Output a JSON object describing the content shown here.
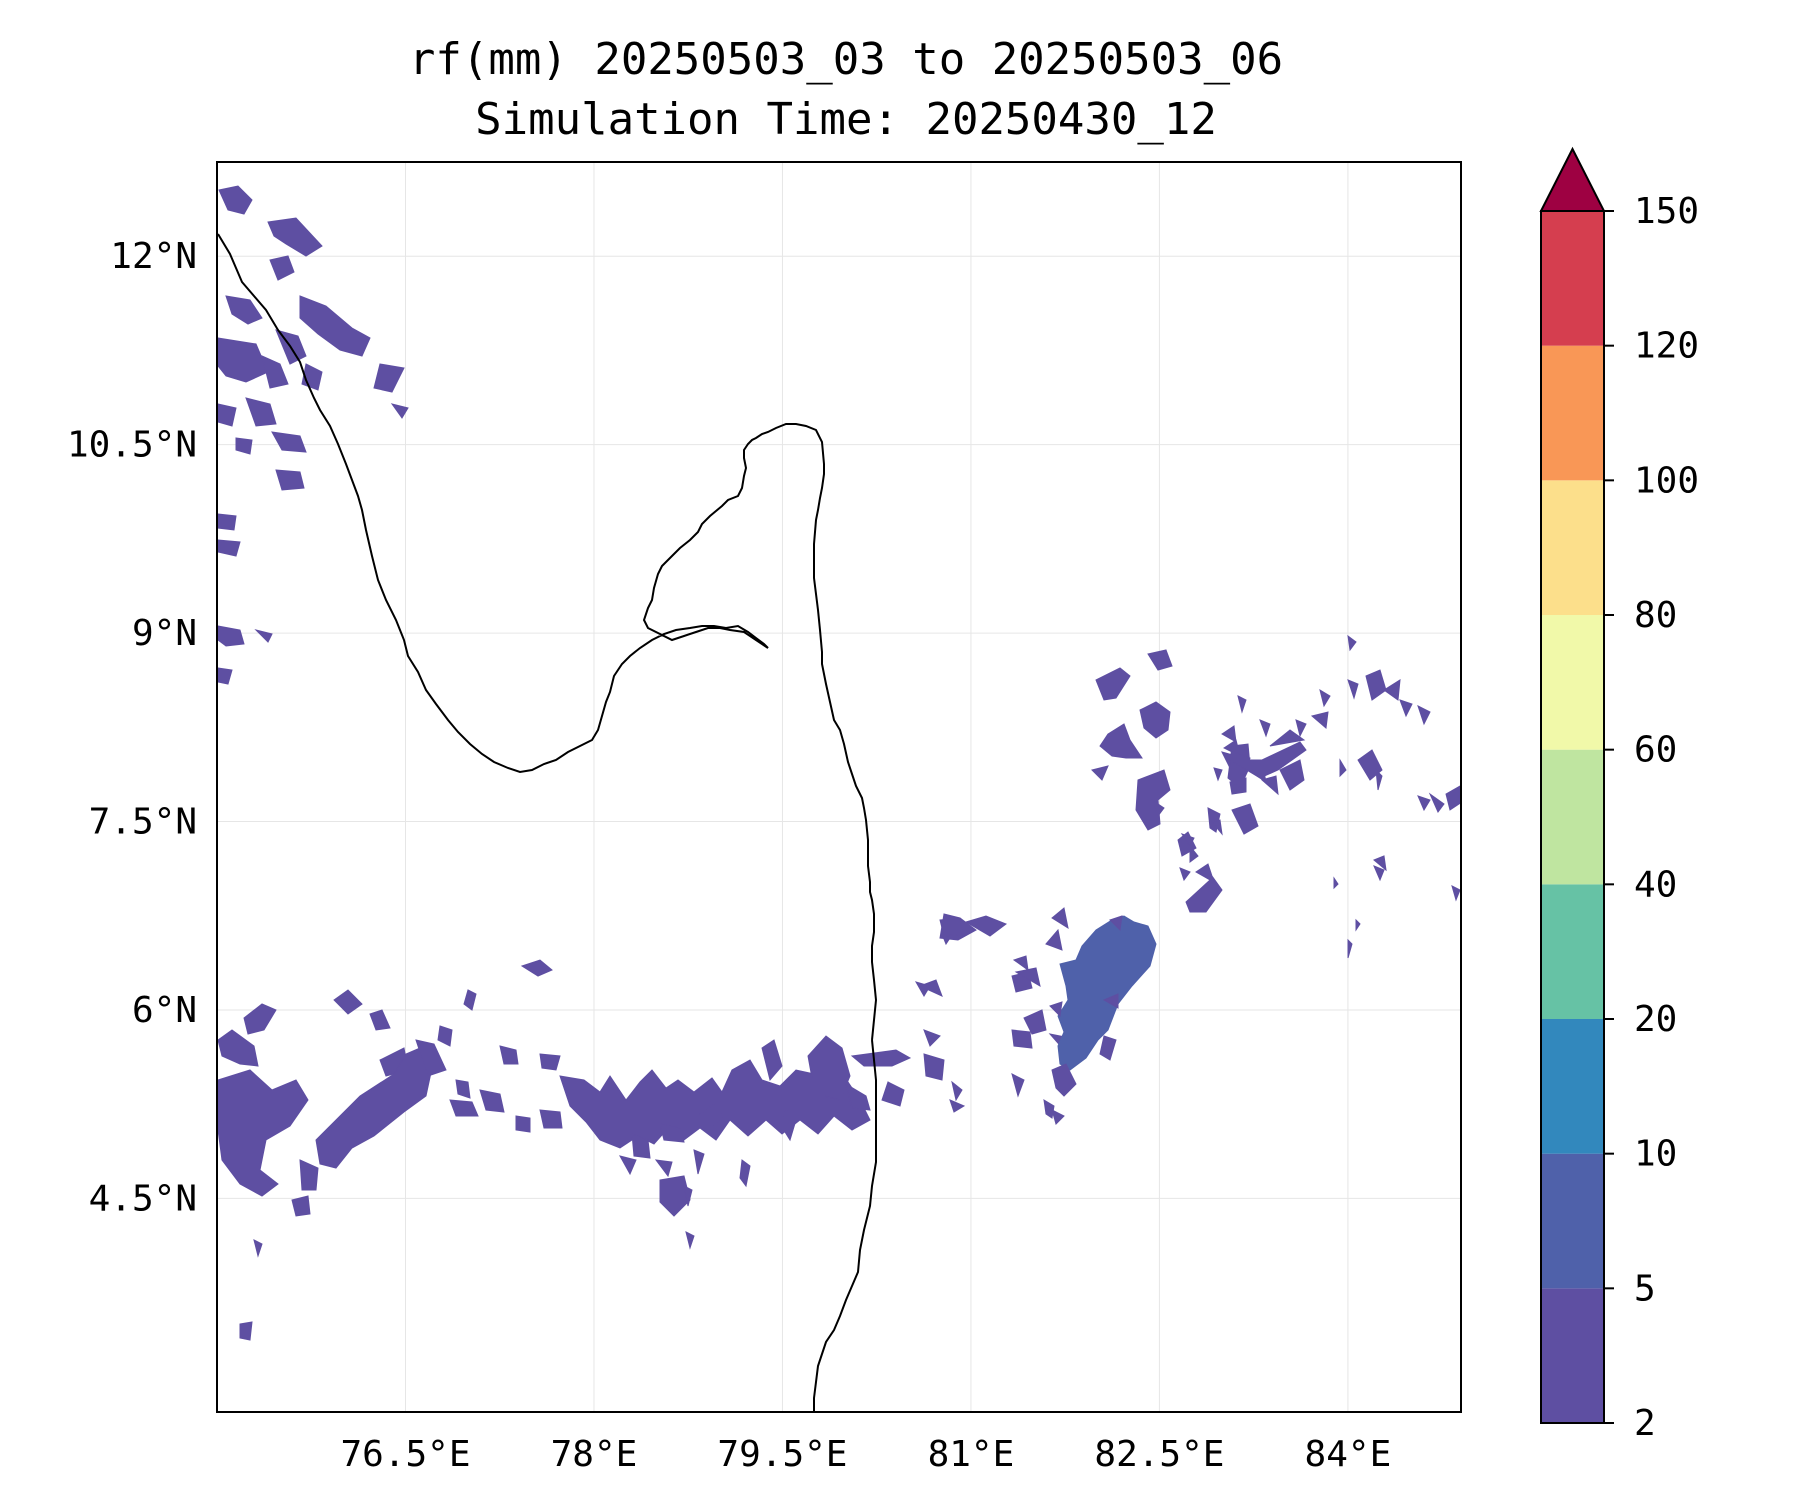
{
  "title": {
    "line1": "rf(mm) 20250503_03 to 20250503_06",
    "line2": "Simulation Time: 20250430_12"
  },
  "map": {
    "lon_range": [
      75,
      84.9
    ],
    "lat_range": [
      2.8,
      12.75
    ],
    "lon_ticks": [
      {
        "value": 76.5,
        "label": "76.5°E"
      },
      {
        "value": 78,
        "label": "78°E"
      },
      {
        "value": 79.5,
        "label": "79.5°E"
      },
      {
        "value": 81,
        "label": "81°E"
      },
      {
        "value": 82.5,
        "label": "82.5°E"
      },
      {
        "value": 84,
        "label": "84°E"
      }
    ],
    "lat_ticks": [
      {
        "value": 12,
        "label": "12°N"
      },
      {
        "value": 10.5,
        "label": "10.5°N"
      },
      {
        "value": 9,
        "label": "9°N"
      },
      {
        "value": 7.5,
        "label": "7.5°N"
      },
      {
        "value": 6,
        "label": "6°N"
      },
      {
        "value": 4.5,
        "label": "4.5°N"
      }
    ],
    "grid": true
  },
  "colorbar": {
    "levels": [
      "2",
      "5",
      "10",
      "20",
      "40",
      "60",
      "80",
      "100",
      "120",
      "150"
    ],
    "colors": [
      "#5e4fa2",
      "#4f61aa",
      "#3288bd",
      "#66c2a5",
      "#bfe5a0",
      "#f1f9a9",
      "#fcdf8b",
      "#f99756",
      "#d53e4f"
    ],
    "extend_color": "#9e0142",
    "extend": "max"
  },
  "rain_color_light": "#5e4fa2",
  "rain_color_mid": "#4f61aa"
}
